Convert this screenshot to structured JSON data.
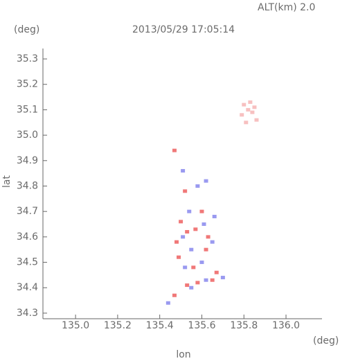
{
  "chart_data": {
    "type": "scatter",
    "title": "2013/05/29 17:05:14",
    "altitude_label": "ALT(km) 2.0",
    "x_label": "lon",
    "y_label": "lat",
    "x_unit": "(deg)",
    "y_unit": "(deg)",
    "xlim": [
      134.845,
      136.171
    ],
    "ylim": [
      34.278,
      35.341
    ],
    "xticks": [
      {
        "value": 135,
        "label": "135.0"
      },
      135.2,
      135.4,
      135.6,
      135.8,
      {
        "value": 136,
        "label": "136.0"
      }
    ],
    "yticks": [
      34.3,
      34.4,
      34.5,
      34.6,
      34.7,
      34.8,
      34.9,
      {
        "value": 35,
        "label": "35.0"
      },
      35.1,
      35.2,
      35.3
    ],
    "series": [
      {
        "color": "#f7c0c0",
        "x": [
          135.8,
          135.82,
          135.79,
          135.84,
          135.86,
          135.81,
          135.83,
          135.85
        ],
        "y": [
          35.12,
          35.1,
          35.08,
          35.09,
          35.06,
          35.05,
          35.13,
          35.11
        ]
      },
      {
        "color": "#f07878",
        "x": [
          135.47,
          135.52,
          135.5,
          135.53,
          135.48,
          135.57,
          135.63,
          135.62,
          135.49,
          135.56,
          135.65,
          135.53,
          135.47,
          135.67,
          135.6,
          135.58
        ],
        "y": [
          34.94,
          34.78,
          34.66,
          34.62,
          34.58,
          34.63,
          34.6,
          34.55,
          34.52,
          34.48,
          34.43,
          34.41,
          34.37,
          34.46,
          34.7,
          34.42
        ]
      },
      {
        "color": "#9a9af0",
        "x": [
          135.51,
          135.58,
          135.62,
          135.54,
          135.51,
          135.55,
          135.61,
          135.65,
          135.52,
          135.6,
          135.55,
          135.62,
          135.7,
          135.44,
          135.66
        ],
        "y": [
          34.86,
          34.8,
          34.82,
          34.7,
          34.6,
          34.55,
          34.65,
          34.58,
          34.48,
          34.5,
          34.4,
          34.43,
          34.44,
          34.34,
          34.68
        ]
      }
    ]
  }
}
